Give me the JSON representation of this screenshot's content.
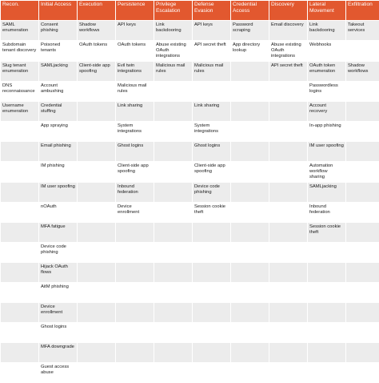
{
  "headers": [
    "Recon.",
    "Initial Access",
    "Execution",
    "Persistence",
    "Privilege Escalation",
    "Defense Evasion",
    "Credential Access",
    "Discovery",
    "Lateral Movement",
    "Exfiltration"
  ],
  "rows": [
    [
      "SAML enumeration",
      "Consent phishing",
      "Shadow workflows",
      "API keys",
      "Link backdooring",
      "API keys",
      "Password scraping",
      "Email discovery",
      "Link backdooring",
      "Takeout services"
    ],
    [
      "Subdomain tenant discovery",
      "Poisoned tenants",
      "OAuth tokens",
      "OAuth tokens",
      "Abuse existing OAuth integrations",
      "API secret theft",
      "App directory lookup",
      "Abuse existing OAuth integrations",
      "Webhooks",
      ""
    ],
    [
      "Slug tenant enumeration",
      "SAMLjacking",
      "Client-side app spoofing",
      "Evil twin integrations",
      "Malicious mail rules",
      "Malicious mail rules",
      "",
      "API secret theft",
      "OAuth token enumeration",
      "Shadow workflows"
    ],
    [
      "DNS reconnaissance",
      "Account ambushing",
      "",
      "Malicious mail rules",
      "",
      "",
      "",
      "",
      "Passwordless logins",
      ""
    ],
    [
      "Username enumeration",
      "Credential stuffing",
      "",
      "Link sharing",
      "",
      "Link sharing",
      "",
      "",
      "Account recovery",
      ""
    ],
    [
      "",
      "App spraying",
      "",
      "System integrations",
      "",
      "System integrations",
      "",
      "",
      "In-app phishing",
      ""
    ],
    [
      "",
      "Email phishing",
      "",
      "Ghost logins",
      "",
      "Ghost logins",
      "",
      "",
      "IM user spoofing",
      ""
    ],
    [
      "",
      "IM phishing",
      "",
      "Client-side app spoofing",
      "",
      "Client-side app spoofing",
      "",
      "",
      "Automation workflow sharing",
      ""
    ],
    [
      "",
      "IM user spoofing",
      "",
      "Inbound federation",
      "",
      "Device code phishing",
      "",
      "",
      "SAMLjacking",
      ""
    ],
    [
      "",
      "nOAuth",
      "",
      "Device enrollment",
      "",
      "Session cookie theft",
      "",
      "",
      "Inbound federation",
      ""
    ],
    [
      "",
      "MFA fatigue",
      "",
      "",
      "",
      "",
      "",
      "",
      "Session cookie theft",
      ""
    ],
    [
      "",
      "Device code phishing",
      "",
      "",
      "",
      "",
      "",
      "",
      "",
      ""
    ],
    [
      "",
      "Hijack OAuth flows",
      "",
      "",
      "",
      "",
      "",
      "",
      "",
      ""
    ],
    [
      "",
      "AitM phishing",
      "",
      "",
      "",
      "",
      "",
      "",
      "",
      ""
    ],
    [
      "",
      "Device enrollment",
      "",
      "",
      "",
      "",
      "",
      "",
      "",
      ""
    ],
    [
      "",
      "Ghost logins",
      "",
      "",
      "",
      "",
      "",
      "",
      "",
      ""
    ],
    [
      "",
      "MFA downgrade",
      "",
      "",
      "",
      "",
      "",
      "",
      "",
      ""
    ],
    [
      "",
      "Guest access abuse",
      "",
      "",
      "",
      "",
      "",
      "",
      "",
      ""
    ]
  ],
  "colors": {
    "header_bg": "#e2582f",
    "header_text": "#ffffff",
    "stripe": "#ececec"
  }
}
